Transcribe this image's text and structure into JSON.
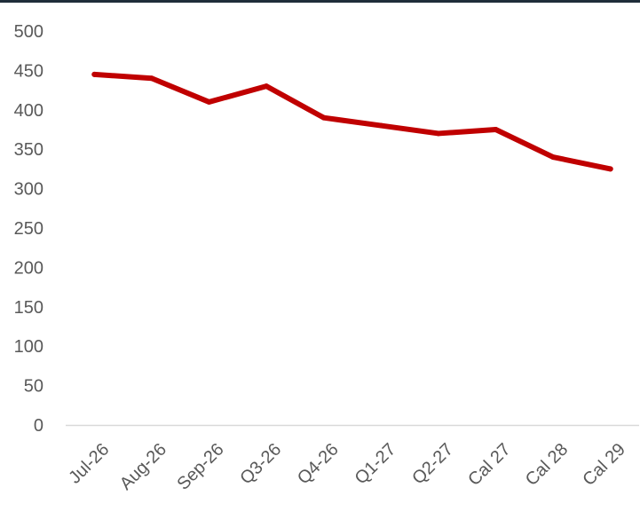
{
  "chart_data": {
    "type": "line",
    "title": "",
    "xlabel": "",
    "ylabel": "",
    "categories": [
      "Jul-26",
      "Aug-26",
      "Sep-26",
      "Q3-26",
      "Q4-26",
      "Q1-27",
      "Q2-27",
      "Cal 27",
      "Cal 28",
      "Cal 29"
    ],
    "series": [
      {
        "values": [
          445,
          440,
          410,
          430,
          390,
          380,
          370,
          375,
          340,
          325
        ],
        "color": "#c00000"
      }
    ],
    "ylim": [
      0,
      500
    ],
    "yticks": [
      0,
      50,
      100,
      150,
      200,
      250,
      300,
      350,
      400,
      450,
      500
    ],
    "grid": false,
    "legend": "none",
    "colors": {
      "axis": "#d9d9d9",
      "tick_text": "#595959",
      "top_rule": "#1f2d3a"
    }
  }
}
